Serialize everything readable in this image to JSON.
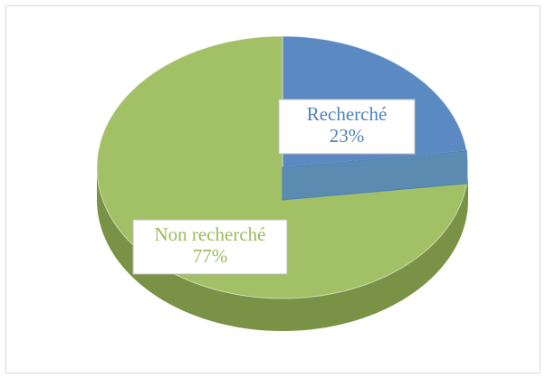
{
  "chart_data": {
    "type": "pie3d",
    "categories": [
      "Recherché",
      "Non recherché"
    ],
    "values": [
      23,
      77
    ],
    "value_labels": [
      "23%",
      "77%"
    ],
    "colors": [
      "#4f81bd",
      "#9bbb59"
    ]
  }
}
